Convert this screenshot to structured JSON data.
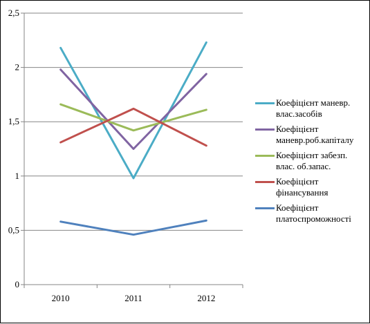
{
  "chart_data": {
    "type": "line",
    "title": "",
    "xlabel": "",
    "ylabel": "",
    "categories": [
      "2010",
      "2011",
      "2012"
    ],
    "ylim": [
      0,
      2.5
    ],
    "y_ticks": [
      "0",
      "0,5",
      "1",
      "1,5",
      "2",
      "2,5"
    ],
    "y_tick_values": [
      0,
      0.5,
      1,
      1.5,
      2,
      2.5
    ],
    "grid": true,
    "legend_position": "right",
    "series": [
      {
        "name": "Коефіцієнт  маневр. влас.засобів",
        "color": "#4BACC6",
        "values": [
          2.18,
          0.98,
          2.23
        ]
      },
      {
        "name": "Коефіцієнт маневр.роб.капіталу",
        "color": "#8064A2",
        "values": [
          1.98,
          1.25,
          1.94
        ]
      },
      {
        "name": "Коефіцієнт  забезп. влас. об.запас.",
        "color": "#9BBB59",
        "values": [
          1.66,
          1.42,
          1.61
        ]
      },
      {
        "name": "Коефіцієнт фінансування",
        "color": "#C0504D",
        "values": [
          1.31,
          1.62,
          1.28
        ]
      },
      {
        "name": "Коефіцієнт платоспроможності",
        "color": "#4F81BD",
        "values": [
          0.58,
          0.46,
          0.59
        ]
      }
    ]
  }
}
